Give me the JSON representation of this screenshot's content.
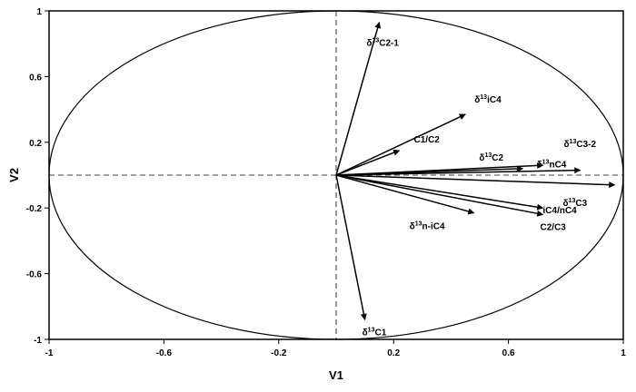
{
  "chart_data": {
    "type": "vector-biplot",
    "xlabel": "V1",
    "ylabel": "V2",
    "xlim": [
      -1,
      1
    ],
    "ylim": [
      -1,
      1
    ],
    "xticks": [
      "-1",
      "-0.6",
      "-0.2",
      "0.2",
      "0.6",
      "1"
    ],
    "yticks": [
      "1",
      "0.6",
      "0.2",
      "-0.2",
      "-0.6",
      "-1"
    ],
    "reference_lines": "dashed lines at x = 0 and y = 0",
    "unit_circle": true,
    "grid": false,
    "vectors": [
      {
        "label": "δ13C2-1",
        "x": 0.15,
        "y": 0.93
      },
      {
        "label": "δ13iC4",
        "x": 0.45,
        "y": 0.37
      },
      {
        "label": "C1/C2",
        "x": 0.22,
        "y": 0.15
      },
      {
        "label": "δ13C2",
        "x": 0.65,
        "y": 0.04
      },
      {
        "label": "δ13C3-2",
        "x": 0.72,
        "y": 0.06
      },
      {
        "label": "δ13nC4",
        "x": 0.85,
        "y": 0.03
      },
      {
        "label": "δ13C3",
        "x": 0.97,
        "y": -0.06
      },
      {
        "label": "iC4/nC4",
        "x": 0.72,
        "y": -0.2
      },
      {
        "label": "C2/C3",
        "x": 0.72,
        "y": -0.24
      },
      {
        "label": "δ13n-iC4",
        "x": 0.48,
        "y": -0.23
      },
      {
        "label": "δ13C1",
        "x": 0.1,
        "y": -0.88
      }
    ]
  }
}
